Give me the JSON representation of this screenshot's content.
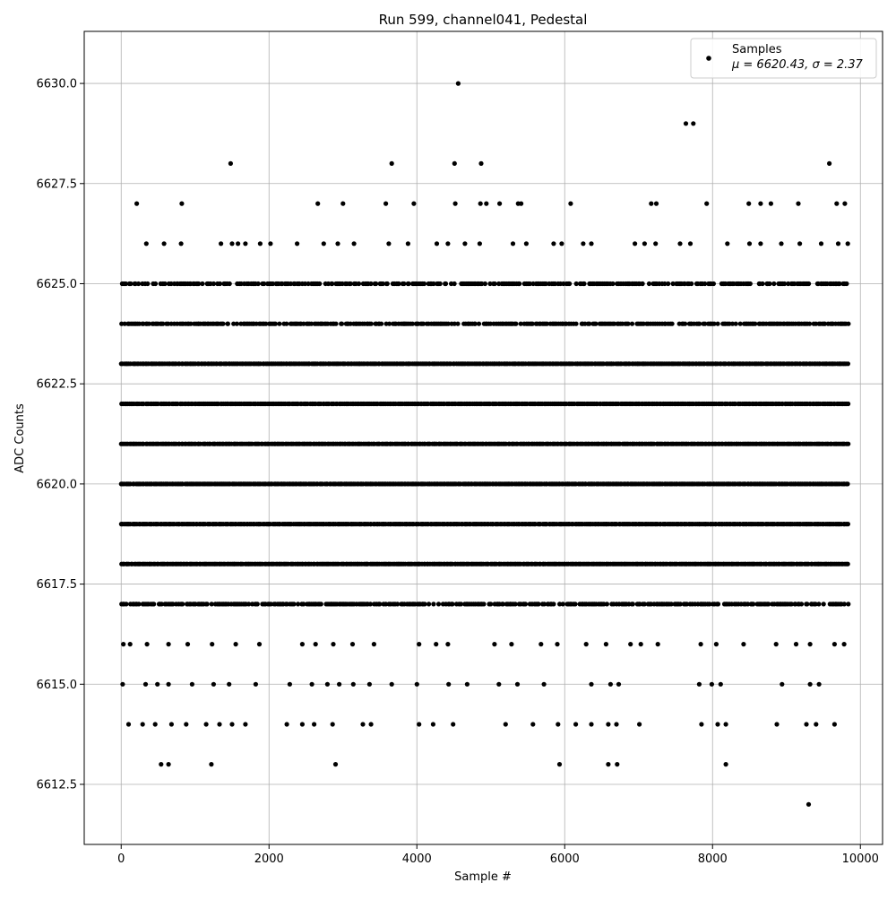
{
  "chart_data": {
    "type": "scatter",
    "title": "Run 599, channel041, Pedestal",
    "xlabel": "Sample #",
    "ylabel": "ADC Counts",
    "xlim": [
      -500,
      10300
    ],
    "ylim": [
      6611,
      6631.3
    ],
    "xticks": [
      0,
      2000,
      4000,
      6000,
      8000,
      10000
    ],
    "yticks": [
      6612.5,
      6615.0,
      6617.5,
      6620.0,
      6622.5,
      6625.0,
      6627.5,
      6630.0
    ],
    "grid": true,
    "legend": {
      "placement": "top-right",
      "entries": [
        {
          "label": "Samples",
          "sublabel": "μ = 6620.43, σ = 2.37"
        }
      ]
    },
    "marker_color": "#000000",
    "series": [
      {
        "name": "Samples",
        "dense_levels": [
          6617,
          6618,
          6619,
          6620,
          6621,
          6622,
          6623,
          6624,
          6625
        ],
        "sample_range": [
          0,
          9840
        ],
        "sparse_points": [
          [
            210,
            6627
          ],
          [
            820,
            6627
          ],
          [
            1480,
            6628
          ],
          [
            2660,
            6627
          ],
          [
            3000,
            6627
          ],
          [
            3580,
            6627
          ],
          [
            3660,
            6628
          ],
          [
            3960,
            6627
          ],
          [
            4520,
            6627
          ],
          [
            4510,
            6628
          ],
          [
            4560,
            6630
          ],
          [
            4870,
            6628
          ],
          [
            4860,
            6627
          ],
          [
            4940,
            6627
          ],
          [
            5120,
            6627
          ],
          [
            5370,
            6627
          ],
          [
            5410,
            6627
          ],
          [
            6080,
            6627
          ],
          [
            7170,
            6627
          ],
          [
            7240,
            6627
          ],
          [
            7640,
            6629
          ],
          [
            7740,
            6629
          ],
          [
            7920,
            6627
          ],
          [
            8490,
            6627
          ],
          [
            8650,
            6627
          ],
          [
            8790,
            6627
          ],
          [
            9160,
            6627
          ],
          [
            9580,
            6628
          ],
          [
            9680,
            6627
          ],
          [
            9790,
            6627
          ],
          [
            340,
            6626
          ],
          [
            580,
            6626
          ],
          [
            810,
            6626
          ],
          [
            1350,
            6626
          ],
          [
            1500,
            6626
          ],
          [
            1580,
            6626
          ],
          [
            1680,
            6626
          ],
          [
            1880,
            6626
          ],
          [
            2020,
            6626
          ],
          [
            2380,
            6626
          ],
          [
            2740,
            6626
          ],
          [
            2930,
            6626
          ],
          [
            3150,
            6626
          ],
          [
            3620,
            6626
          ],
          [
            3880,
            6626
          ],
          [
            4270,
            6626
          ],
          [
            4420,
            6626
          ],
          [
            4650,
            6626
          ],
          [
            4850,
            6626
          ],
          [
            5300,
            6626
          ],
          [
            5480,
            6626
          ],
          [
            5850,
            6626
          ],
          [
            5960,
            6626
          ],
          [
            6250,
            6626
          ],
          [
            6360,
            6626
          ],
          [
            6950,
            6626
          ],
          [
            7080,
            6626
          ],
          [
            7230,
            6626
          ],
          [
            7560,
            6626
          ],
          [
            7700,
            6626
          ],
          [
            8200,
            6626
          ],
          [
            8500,
            6626
          ],
          [
            8650,
            6626
          ],
          [
            8930,
            6626
          ],
          [
            9180,
            6626
          ],
          [
            9470,
            6626
          ],
          [
            9700,
            6626
          ],
          [
            9830,
            6626
          ],
          [
            30,
            6616
          ],
          [
            120,
            6616
          ],
          [
            350,
            6616
          ],
          [
            640,
            6616
          ],
          [
            900,
            6616
          ],
          [
            1230,
            6616
          ],
          [
            1550,
            6616
          ],
          [
            1870,
            6616
          ],
          [
            2450,
            6616
          ],
          [
            2630,
            6616
          ],
          [
            2870,
            6616
          ],
          [
            3130,
            6616
          ],
          [
            3420,
            6616
          ],
          [
            4030,
            6616
          ],
          [
            4260,
            6616
          ],
          [
            4420,
            6616
          ],
          [
            5050,
            6616
          ],
          [
            5280,
            6616
          ],
          [
            5680,
            6616
          ],
          [
            5900,
            6616
          ],
          [
            6290,
            6616
          ],
          [
            6560,
            6616
          ],
          [
            6890,
            6616
          ],
          [
            7030,
            6616
          ],
          [
            7260,
            6616
          ],
          [
            7840,
            6616
          ],
          [
            8050,
            6616
          ],
          [
            8420,
            6616
          ],
          [
            8860,
            6616
          ],
          [
            9130,
            6616
          ],
          [
            9320,
            6616
          ],
          [
            9650,
            6616
          ],
          [
            9780,
            6616
          ],
          [
            20,
            6615
          ],
          [
            330,
            6615
          ],
          [
            490,
            6615
          ],
          [
            640,
            6615
          ],
          [
            960,
            6615
          ],
          [
            1250,
            6615
          ],
          [
            1460,
            6615
          ],
          [
            1820,
            6615
          ],
          [
            2280,
            6615
          ],
          [
            2580,
            6615
          ],
          [
            2790,
            6615
          ],
          [
            2950,
            6615
          ],
          [
            3140,
            6615
          ],
          [
            3360,
            6615
          ],
          [
            3660,
            6615
          ],
          [
            4000,
            6615
          ],
          [
            4430,
            6615
          ],
          [
            4680,
            6615
          ],
          [
            5110,
            6615
          ],
          [
            5360,
            6615
          ],
          [
            5720,
            6615
          ],
          [
            6360,
            6615
          ],
          [
            6620,
            6615
          ],
          [
            6730,
            6615
          ],
          [
            7820,
            6615
          ],
          [
            7990,
            6615
          ],
          [
            8110,
            6615
          ],
          [
            8940,
            6615
          ],
          [
            9320,
            6615
          ],
          [
            9440,
            6615
          ],
          [
            100,
            6614
          ],
          [
            290,
            6614
          ],
          [
            460,
            6614
          ],
          [
            680,
            6614
          ],
          [
            880,
            6614
          ],
          [
            1150,
            6614
          ],
          [
            1330,
            6614
          ],
          [
            1500,
            6614
          ],
          [
            1680,
            6614
          ],
          [
            2240,
            6614
          ],
          [
            2450,
            6614
          ],
          [
            2610,
            6614
          ],
          [
            2860,
            6614
          ],
          [
            3270,
            6614
          ],
          [
            3380,
            6614
          ],
          [
            4030,
            6614
          ],
          [
            4220,
            6614
          ],
          [
            4490,
            6614
          ],
          [
            5200,
            6614
          ],
          [
            5570,
            6614
          ],
          [
            5910,
            6614
          ],
          [
            6150,
            6614
          ],
          [
            6360,
            6614
          ],
          [
            6590,
            6614
          ],
          [
            6700,
            6614
          ],
          [
            7010,
            6614
          ],
          [
            7850,
            6614
          ],
          [
            8070,
            6614
          ],
          [
            8180,
            6614
          ],
          [
            8870,
            6614
          ],
          [
            9270,
            6614
          ],
          [
            9400,
            6614
          ],
          [
            9650,
            6614
          ],
          [
            540,
            6613
          ],
          [
            640,
            6613
          ],
          [
            1220,
            6613
          ],
          [
            2900,
            6613
          ],
          [
            5930,
            6613
          ],
          [
            6590,
            6613
          ],
          [
            6710,
            6613
          ],
          [
            8180,
            6613
          ],
          [
            9300,
            6612
          ]
        ]
      }
    ]
  }
}
